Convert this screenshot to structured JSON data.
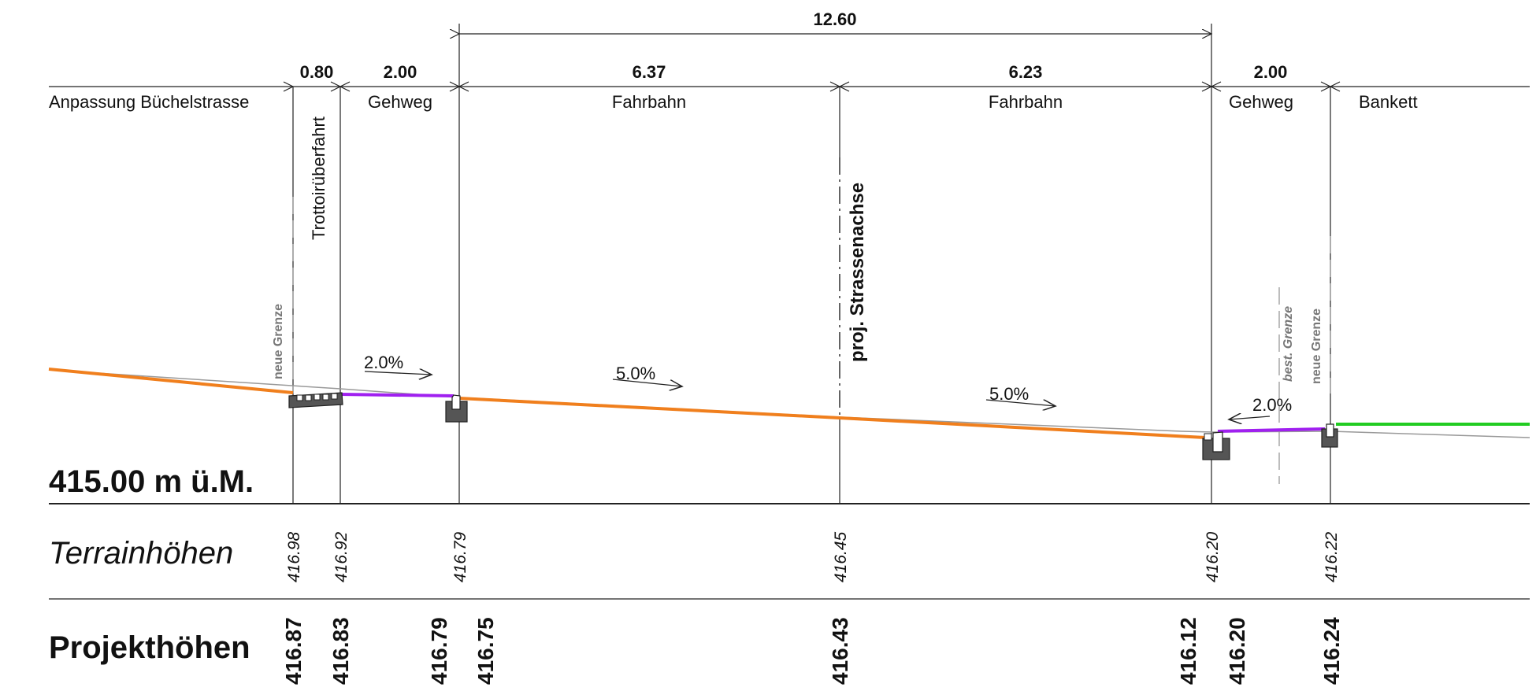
{
  "dimensions": {
    "overall": "12.60",
    "segments": [
      "0.80",
      "2.00",
      "6.37",
      "6.23",
      "2.00"
    ]
  },
  "zones": {
    "anpassung": "Anpassung Büchelstrasse",
    "trottoir": "Trottoirüberfahrt",
    "gehweg_left": "Gehweg",
    "fahrbahn_left": "Fahrbahn",
    "fahrbahn_right": "Fahrbahn",
    "gehweg_right": "Gehweg",
    "bankett": "Bankett"
  },
  "axis_label": "proj. Strassenachse",
  "grenzen": {
    "left_new": "neue Grenze",
    "right_existing": "best. Grenze",
    "right_new": "neue Grenze"
  },
  "slopes": [
    "2.0%",
    "5.0%",
    "5.0%",
    "2.0%"
  ],
  "reference_level": "415.00 m ü.M.",
  "rows": {
    "terrain_title": "Terrainhöhen",
    "project_title": "Projekthöhen"
  },
  "terrain_heights": [
    "416.98",
    "416.92",
    "416.79",
    "416.45",
    "416.20",
    "416.22"
  ],
  "project_heights": [
    "416.87",
    "416.83",
    "416.79",
    "416.75",
    "416.43",
    "416.12",
    "416.20",
    "416.24"
  ],
  "colors": {
    "road_surface": "#f07f1d",
    "sidewalk": "#a020f0",
    "bankett": "#22cc22",
    "existing_terrain": "#999999",
    "curb": "#555555"
  }
}
